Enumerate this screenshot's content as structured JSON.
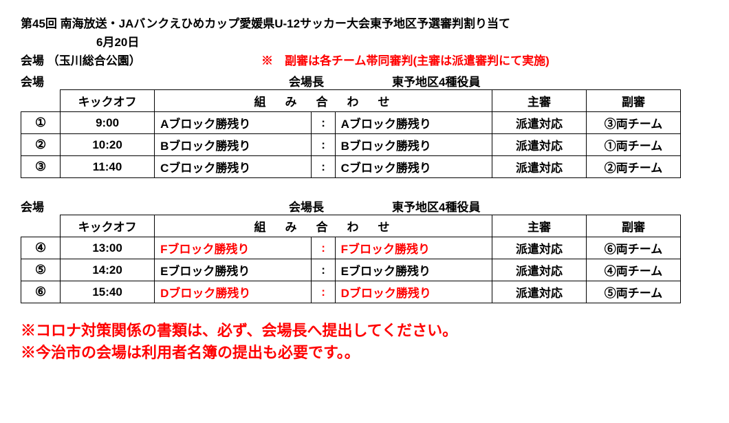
{
  "header": {
    "title": "第45回 南海放送・JAバンクえひめカップ愛媛県U-12サッカー大会東予地区予選審判割り当て",
    "date": "6月20日",
    "venue_label": "会場 （玉川総合公園）",
    "venue_note": "※　副審は各チーム帯同審判(主審は派遣審判にて実施)"
  },
  "colors": {
    "accent": "#ff0000",
    "border": "#000000",
    "bg": "#ffffff",
    "text": "#000000"
  },
  "section_labels": {
    "kaijo": "会場",
    "kaijocho": "会場長",
    "toyo": "東予地区4種役員"
  },
  "columns": {
    "num": "",
    "kickoff": "キックオフ",
    "kumi": "組み合わせ",
    "shushin": "主審",
    "fukushin": "副審"
  },
  "tables": [
    {
      "rows": [
        {
          "num": "①",
          "kick": "9:00",
          "home": "Aブロック勝残り",
          "away": "Aブロック勝残り",
          "home_red": false,
          "away_red": false,
          "shu": "派遣対応",
          "fuku": "③両チーム"
        },
        {
          "num": "②",
          "kick": "10:20",
          "home": "Bブロック勝残り",
          "away": "Bブロック勝残り",
          "home_red": false,
          "away_red": false,
          "shu": "派遣対応",
          "fuku": "①両チーム"
        },
        {
          "num": "③",
          "kick": "11:40",
          "home": "Cブロック勝残り",
          "away": "Cブロック勝残り",
          "home_red": false,
          "away_red": false,
          "shu": "派遣対応",
          "fuku": "②両チーム"
        }
      ]
    },
    {
      "rows": [
        {
          "num": "④",
          "kick": "13:00",
          "home": "Fブロック勝残り",
          "away": "Fブロック勝残り",
          "home_red": true,
          "away_red": true,
          "shu": "派遣対応",
          "fuku": "⑥両チーム"
        },
        {
          "num": "⑤",
          "kick": "14:20",
          "home": "Eブロック勝残り",
          "away": "Eブロック勝残り",
          "home_red": false,
          "away_red": false,
          "shu": "派遣対応",
          "fuku": "④両チーム"
        },
        {
          "num": "⑥",
          "kick": "15:40",
          "home": "Dブロック勝残り",
          "away": "Dブロック勝残り",
          "home_red": true,
          "away_red": true,
          "shu": "派遣対応",
          "fuku": "⑤両チーム"
        }
      ]
    }
  ],
  "colon": ":",
  "notices": [
    "※コロナ対策関係の書類は、必ず、会場長へ提出してください。",
    "※今治市の会場は利用者名簿の提出も必要です。。"
  ]
}
